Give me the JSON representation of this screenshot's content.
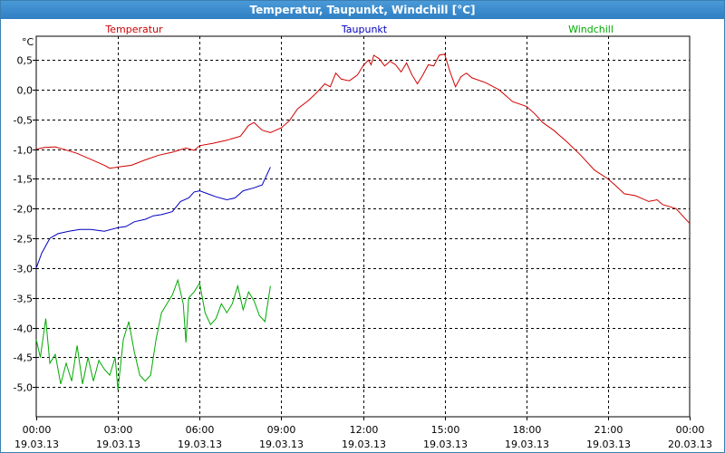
{
  "window": {
    "title": "Temperatur, Taupunkt, Windchill [°C]"
  },
  "chart_data": {
    "type": "line",
    "unit": "°C",
    "ylim": [
      -5.5,
      0.9
    ],
    "grid": true,
    "y_ticks": [
      {
        "v": 0.5,
        "label": "0,5"
      },
      {
        "v": 0.0,
        "label": "0,0"
      },
      {
        "v": -0.5,
        "label": "-0,5"
      },
      {
        "v": -1.0,
        "label": "-1,0"
      },
      {
        "v": -1.5,
        "label": "-1,5"
      },
      {
        "v": -2.0,
        "label": "-2,0"
      },
      {
        "v": -2.5,
        "label": "-2,5"
      },
      {
        "v": -3.0,
        "label": "-3,0"
      },
      {
        "v": -3.5,
        "label": "-3,5"
      },
      {
        "v": -4.0,
        "label": "-4,0"
      },
      {
        "v": -4.5,
        "label": "-4,5"
      },
      {
        "v": -5.0,
        "label": "-5,0"
      }
    ],
    "x_range_hours": [
      0,
      24
    ],
    "x_ticks": [
      {
        "h": 0,
        "time": "00:00",
        "date": "19.03.13"
      },
      {
        "h": 3,
        "time": "03:00",
        "date": "19.03.13"
      },
      {
        "h": 6,
        "time": "06:00",
        "date": "19.03.13"
      },
      {
        "h": 9,
        "time": "09:00",
        "date": "19.03.13"
      },
      {
        "h": 12,
        "time": "12:00",
        "date": "19.03.13"
      },
      {
        "h": 15,
        "time": "15:00",
        "date": "19.03.13"
      },
      {
        "h": 18,
        "time": "18:00",
        "date": "19.03.13"
      },
      {
        "h": 21,
        "time": "21:00",
        "date": "19.03.13"
      },
      {
        "h": 24,
        "time": "00:00",
        "date": "20.03.13"
      }
    ],
    "series": [
      {
        "name": "Temperatur",
        "color": "#d00000",
        "points": [
          [
            0.0,
            -1.0
          ],
          [
            0.3,
            -0.97
          ],
          [
            0.7,
            -0.96
          ],
          [
            1.0,
            -1.0
          ],
          [
            1.5,
            -1.07
          ],
          [
            2.0,
            -1.17
          ],
          [
            2.5,
            -1.27
          ],
          [
            2.7,
            -1.32
          ],
          [
            3.0,
            -1.3
          ],
          [
            3.5,
            -1.27
          ],
          [
            4.0,
            -1.18
          ],
          [
            4.5,
            -1.1
          ],
          [
            5.0,
            -1.05
          ],
          [
            5.5,
            -0.98
          ],
          [
            5.8,
            -1.02
          ],
          [
            6.0,
            -0.94
          ],
          [
            6.5,
            -0.9
          ],
          [
            7.0,
            -0.85
          ],
          [
            7.5,
            -0.78
          ],
          [
            7.8,
            -0.6
          ],
          [
            8.0,
            -0.55
          ],
          [
            8.3,
            -0.68
          ],
          [
            8.6,
            -0.72
          ],
          [
            9.0,
            -0.64
          ],
          [
            9.3,
            -0.52
          ],
          [
            9.6,
            -0.32
          ],
          [
            10.0,
            -0.18
          ],
          [
            10.3,
            -0.05
          ],
          [
            10.6,
            0.1
          ],
          [
            10.8,
            0.05
          ],
          [
            11.0,
            0.28
          ],
          [
            11.2,
            0.18
          ],
          [
            11.5,
            0.15
          ],
          [
            11.8,
            0.25
          ],
          [
            12.0,
            0.4
          ],
          [
            12.2,
            0.5
          ],
          [
            12.3,
            0.42
          ],
          [
            12.4,
            0.58
          ],
          [
            12.6,
            0.52
          ],
          [
            12.8,
            0.4
          ],
          [
            13.0,
            0.48
          ],
          [
            13.2,
            0.42
          ],
          [
            13.4,
            0.3
          ],
          [
            13.6,
            0.45
          ],
          [
            13.8,
            0.25
          ],
          [
            14.0,
            0.1
          ],
          [
            14.2,
            0.25
          ],
          [
            14.4,
            0.42
          ],
          [
            14.6,
            0.4
          ],
          [
            14.8,
            0.58
          ],
          [
            15.0,
            0.6
          ],
          [
            15.2,
            0.3
          ],
          [
            15.4,
            0.05
          ],
          [
            15.6,
            0.22
          ],
          [
            15.8,
            0.28
          ],
          [
            16.0,
            0.2
          ],
          [
            16.5,
            0.12
          ],
          [
            17.0,
            0.0
          ],
          [
            17.5,
            -0.2
          ],
          [
            18.0,
            -0.28
          ],
          [
            18.3,
            -0.4
          ],
          [
            18.6,
            -0.55
          ],
          [
            19.0,
            -0.68
          ],
          [
            19.5,
            -0.88
          ],
          [
            20.0,
            -1.1
          ],
          [
            20.5,
            -1.35
          ],
          [
            21.0,
            -1.5
          ],
          [
            21.3,
            -1.62
          ],
          [
            21.6,
            -1.75
          ],
          [
            22.0,
            -1.78
          ],
          [
            22.5,
            -1.88
          ],
          [
            22.8,
            -1.85
          ],
          [
            23.0,
            -1.93
          ],
          [
            23.5,
            -2.0
          ],
          [
            24.0,
            -2.25
          ]
        ]
      },
      {
        "name": "Taupunkt",
        "color": "#0000c0",
        "points": [
          [
            0.0,
            -3.0
          ],
          [
            0.2,
            -2.75
          ],
          [
            0.5,
            -2.5
          ],
          [
            0.8,
            -2.42
          ],
          [
            1.2,
            -2.38
          ],
          [
            1.6,
            -2.35
          ],
          [
            2.0,
            -2.35
          ],
          [
            2.5,
            -2.38
          ],
          [
            3.0,
            -2.32
          ],
          [
            3.3,
            -2.3
          ],
          [
            3.6,
            -2.22
          ],
          [
            4.0,
            -2.18
          ],
          [
            4.3,
            -2.12
          ],
          [
            4.6,
            -2.1
          ],
          [
            5.0,
            -2.05
          ],
          [
            5.3,
            -1.88
          ],
          [
            5.6,
            -1.82
          ],
          [
            5.8,
            -1.72
          ],
          [
            6.0,
            -1.7
          ],
          [
            6.3,
            -1.75
          ],
          [
            6.6,
            -1.8
          ],
          [
            7.0,
            -1.85
          ],
          [
            7.3,
            -1.82
          ],
          [
            7.6,
            -1.7
          ],
          [
            8.0,
            -1.65
          ],
          [
            8.3,
            -1.6
          ],
          [
            8.6,
            -1.3
          ]
        ]
      },
      {
        "name": "Windchill",
        "color": "#00aa00",
        "points": [
          [
            0.0,
            -4.2
          ],
          [
            0.15,
            -4.5
          ],
          [
            0.35,
            -3.85
          ],
          [
            0.5,
            -4.6
          ],
          [
            0.7,
            -4.45
          ],
          [
            0.9,
            -4.95
          ],
          [
            1.1,
            -4.6
          ],
          [
            1.3,
            -4.9
          ],
          [
            1.5,
            -4.3
          ],
          [
            1.7,
            -4.95
          ],
          [
            1.9,
            -4.5
          ],
          [
            2.1,
            -4.9
          ],
          [
            2.3,
            -4.55
          ],
          [
            2.5,
            -4.7
          ],
          [
            2.7,
            -4.8
          ],
          [
            2.9,
            -4.5
          ],
          [
            3.0,
            -5.05
          ],
          [
            3.2,
            -4.2
          ],
          [
            3.4,
            -3.9
          ],
          [
            3.6,
            -4.4
          ],
          [
            3.8,
            -4.8
          ],
          [
            4.0,
            -4.9
          ],
          [
            4.2,
            -4.8
          ],
          [
            4.4,
            -4.2
          ],
          [
            4.6,
            -3.75
          ],
          [
            4.8,
            -3.6
          ],
          [
            5.0,
            -3.45
          ],
          [
            5.2,
            -3.2
          ],
          [
            5.4,
            -3.6
          ],
          [
            5.5,
            -4.25
          ],
          [
            5.6,
            -3.5
          ],
          [
            5.8,
            -3.4
          ],
          [
            6.0,
            -3.25
          ],
          [
            6.2,
            -3.75
          ],
          [
            6.4,
            -3.95
          ],
          [
            6.6,
            -3.85
          ],
          [
            6.8,
            -3.6
          ],
          [
            7.0,
            -3.75
          ],
          [
            7.2,
            -3.6
          ],
          [
            7.4,
            -3.3
          ],
          [
            7.6,
            -3.7
          ],
          [
            7.8,
            -3.4
          ],
          [
            8.0,
            -3.55
          ],
          [
            8.2,
            -3.8
          ],
          [
            8.4,
            -3.9
          ],
          [
            8.6,
            -3.3
          ]
        ]
      }
    ]
  }
}
